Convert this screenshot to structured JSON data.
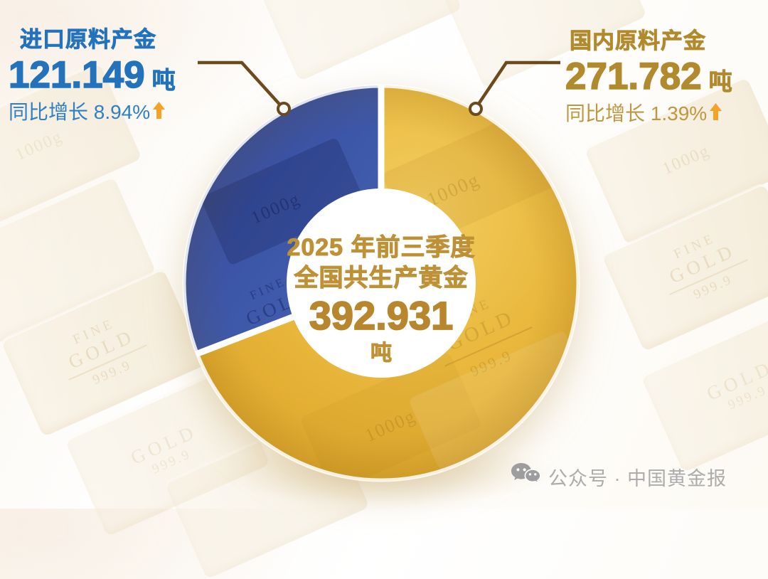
{
  "left_callout": {
    "title": "进口原料产金",
    "value": "121.149",
    "unit": "吨",
    "growth": "同比增长 8.94%",
    "arrow": "↑"
  },
  "right_callout": {
    "title": "国内原料产金",
    "value": "271.782",
    "unit": "吨",
    "growth": "同比增长 1.39%",
    "arrow": "↑"
  },
  "center_label": {
    "line1": "2025 年前三季度",
    "line2": "全国共生产黄金",
    "value": "392.931",
    "unit": "吨"
  },
  "watermark": {
    "text": "公众号 · 中国黄金报"
  },
  "background": {
    "bar_text_brand": "FINE",
    "bar_text_brand2": "GOLD",
    "bar_text_purity": "999.9",
    "bar_text_weight": "1000g"
  },
  "colors": {
    "imported_blue": "#3A55A6",
    "domestic_gold": "#E4AF33",
    "callout_blue": "#2272BC",
    "callout_gold": "#B28A2E",
    "growth_arrow_orange": "#F5A328",
    "leader_brown": "#6B4A1E",
    "center_text_gold": "#BE8E35",
    "watermark_gray": "#ACACAC"
  },
  "chart_data": {
    "type": "pie",
    "donut": true,
    "start_angle_deg_from_top": 0,
    "direction": "clockwise",
    "title": "2025 年前三季度全国共生产黄金",
    "total_value": 392.931,
    "total_unit": "吨",
    "slices": [
      {
        "label": "国内原料产金",
        "value": 271.782,
        "unit": "吨",
        "share_pct": 69.2,
        "yoy_growth_pct": 1.39,
        "color": "#E4AF33"
      },
      {
        "label": "进口原料产金",
        "value": 121.149,
        "unit": "吨",
        "share_pct": 30.8,
        "yoy_growth_pct": 8.94,
        "color": "#3A55A6"
      }
    ],
    "legend_position": "callouts"
  }
}
